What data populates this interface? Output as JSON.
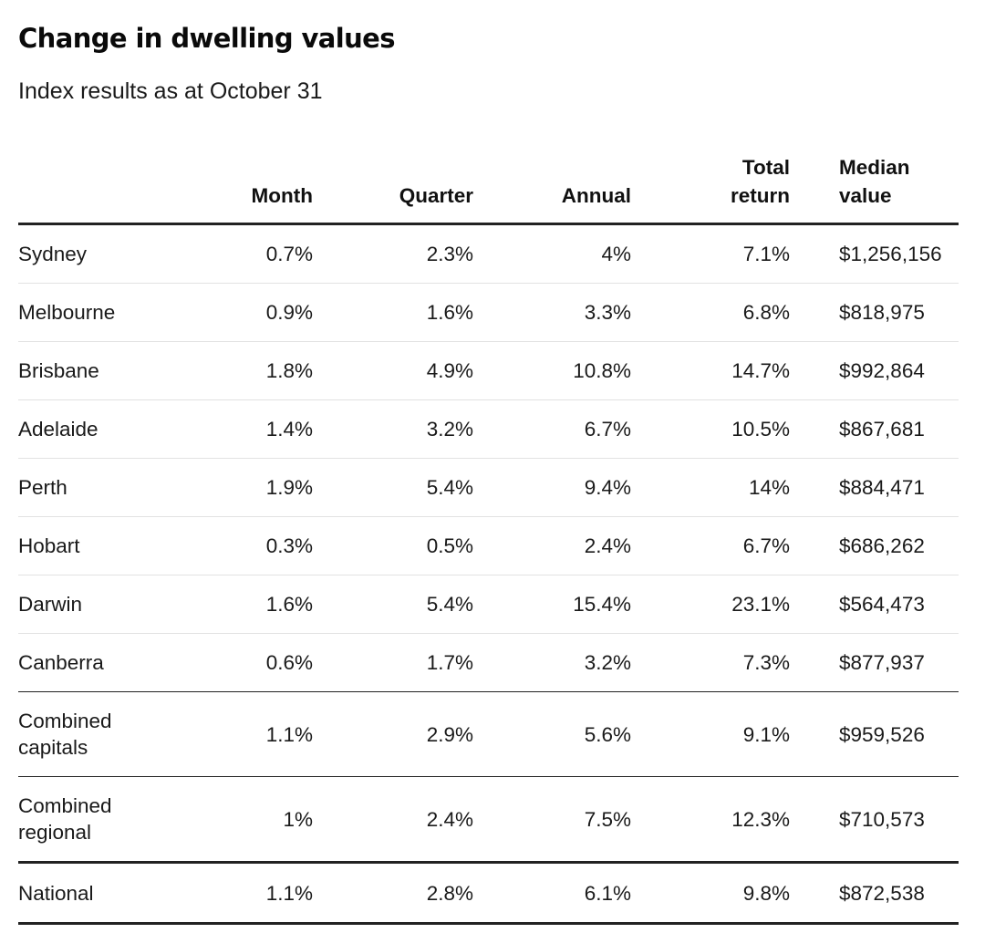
{
  "title": "Change in dwelling values",
  "subtitle": "Index results as at October 31",
  "chart_data": {
    "type": "table",
    "title": "Change in dwelling values",
    "subtitle": "Index results as at October 31",
    "columns": [
      "",
      "Month",
      "Quarter",
      "Annual",
      "Total return",
      "Median value"
    ],
    "rows": [
      [
        "Sydney",
        "0.7%",
        "2.3%",
        "4%",
        "7.1%",
        "$1,256,156"
      ],
      [
        "Melbourne",
        "0.9%",
        "1.6%",
        "3.3%",
        "6.8%",
        "$818,975"
      ],
      [
        "Brisbane",
        "1.8%",
        "4.9%",
        "10.8%",
        "14.7%",
        "$992,864"
      ],
      [
        "Adelaide",
        "1.4%",
        "3.2%",
        "6.7%",
        "10.5%",
        "$867,681"
      ],
      [
        "Perth",
        "1.9%",
        "5.4%",
        "9.4%",
        "14%",
        "$884,471"
      ],
      [
        "Hobart",
        "0.3%",
        "0.5%",
        "2.4%",
        "6.7%",
        "$686,262"
      ],
      [
        "Darwin",
        "1.6%",
        "5.4%",
        "15.4%",
        "23.1%",
        "$564,473"
      ],
      [
        "Canberra",
        "0.6%",
        "1.7%",
        "3.2%",
        "7.3%",
        "$877,937"
      ],
      [
        "Combined capitals",
        "1.1%",
        "2.9%",
        "5.6%",
        "9.1%",
        "$959,526"
      ],
      [
        "Combined regional",
        "1%",
        "2.4%",
        "7.5%",
        "12.3%",
        "$710,573"
      ],
      [
        "National",
        "1.1%",
        "2.8%",
        "6.1%",
        "9.8%",
        "$872,538"
      ]
    ]
  }
}
